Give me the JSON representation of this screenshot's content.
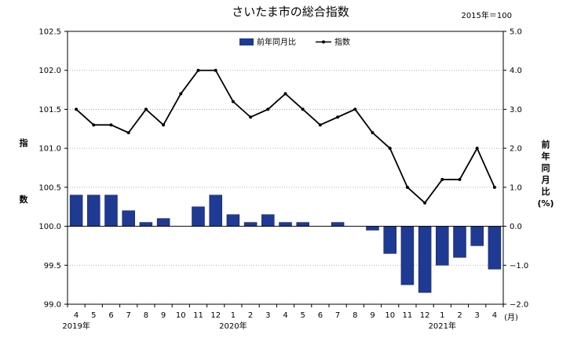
{
  "chart_data": {
    "type": "bar+line",
    "title": "さいたま市の総合指数",
    "base_note": "2015年＝100",
    "categories": [
      "4",
      "5",
      "6",
      "7",
      "8",
      "9",
      "10",
      "11",
      "12",
      "1",
      "2",
      "3",
      "4",
      "5",
      "6",
      "7",
      "8",
      "9",
      "10",
      "11",
      "12",
      "1",
      "2",
      "3",
      "4"
    ],
    "x_unit": "(月)",
    "year_labels": [
      {
        "label": "2019年",
        "at_index": 0
      },
      {
        "label": "2020年",
        "at_index": 9
      },
      {
        "label": "2021年",
        "at_index": 21
      }
    ],
    "left_axis": {
      "label_chars": [
        "指",
        "数"
      ],
      "ylim": [
        99.0,
        102.5
      ],
      "ticks": [
        "99.0",
        "99.5",
        "100.0",
        "100.5",
        "101.0",
        "101.5",
        "102.0",
        "102.5"
      ]
    },
    "right_axis": {
      "label_chars": [
        "前",
        "年",
        "同",
        "月",
        "比",
        "(%)"
      ],
      "ylim": [
        -2.0,
        5.0
      ],
      "ticks": [
        "−2.0",
        "−1.0",
        "0.0",
        "1.0",
        "2.0",
        "3.0",
        "4.0",
        "5.0"
      ]
    },
    "series": [
      {
        "name": "前年同月比",
        "kind": "bar",
        "axis": "right",
        "color": "#1f3a93",
        "values": [
          0.8,
          0.8,
          0.8,
          0.4,
          0.1,
          0.2,
          0.0,
          0.5,
          0.8,
          0.3,
          0.1,
          0.3,
          0.1,
          0.1,
          0.0,
          0.1,
          0.0,
          -0.1,
          -0.7,
          -1.5,
          -1.7,
          -1.0,
          -0.8,
          -0.5,
          -1.1
        ]
      },
      {
        "name": "指数",
        "kind": "line",
        "axis": "left",
        "color": "#000000",
        "values": [
          101.5,
          101.3,
          101.3,
          101.2,
          101.5,
          101.3,
          101.7,
          102.0,
          102.0,
          101.6,
          101.4,
          101.5,
          101.7,
          101.5,
          101.3,
          101.4,
          101.5,
          101.2,
          101.0,
          100.5,
          100.3,
          100.6,
          100.6,
          101.0,
          100.5
        ]
      }
    ],
    "legend_position": "top-center",
    "grid": "horizontal dotted"
  }
}
